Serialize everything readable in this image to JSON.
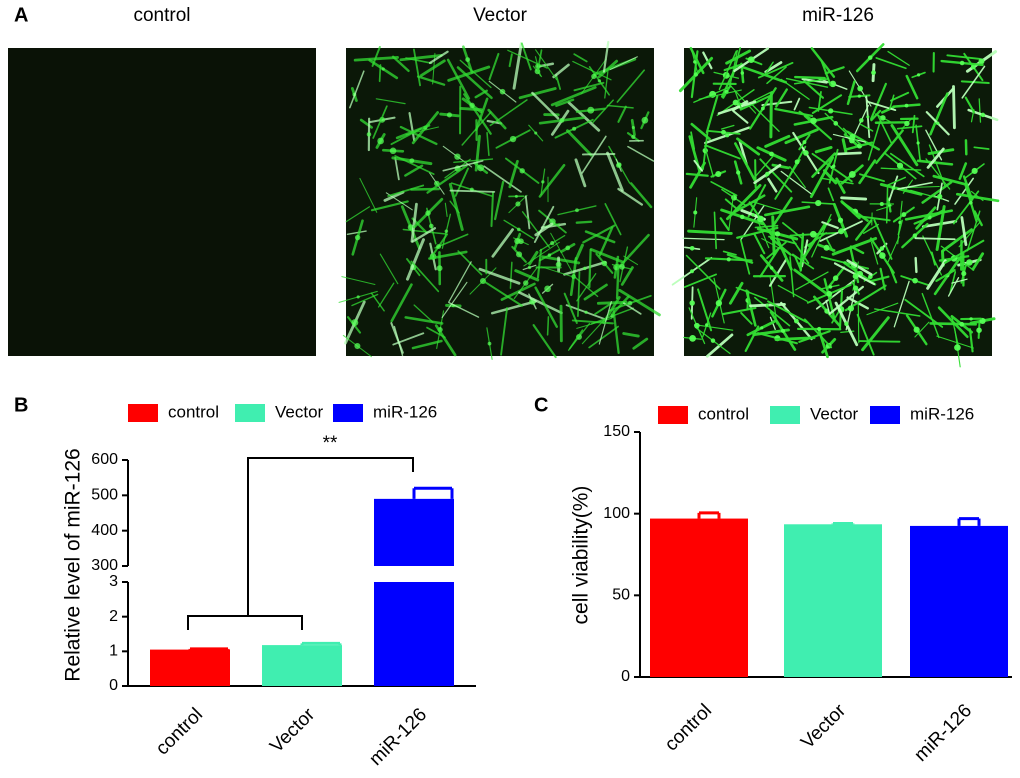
{
  "panel_a": {
    "label": "A",
    "images": [
      {
        "title": "control"
      },
      {
        "title": "Vector"
      },
      {
        "title": "miR-126"
      }
    ]
  },
  "chart_data": [
    {
      "type": "broken-bar",
      "panel_label": "B",
      "y_label": "Relative  level of miR-126",
      "categories": [
        "control",
        "Vector",
        "miR-126"
      ],
      "values": [
        1.05,
        1.18,
        490
      ],
      "errors": [
        0.02,
        0.05,
        30
      ],
      "colors": [
        "#ff0000",
        "#40eeb0",
        "#0000ff"
      ],
      "ylim_lower": [
        0,
        3
      ],
      "yticks_lower": [
        0,
        1,
        2,
        3
      ],
      "ylim_upper": [
        300,
        600
      ],
      "yticks_upper": [
        300,
        400,
        500,
        600
      ],
      "annotation": "**"
    },
    {
      "type": "bar",
      "panel_label": "C",
      "y_label": "cell viability(%)",
      "categories": [
        "control",
        "Vector",
        "miR-126"
      ],
      "values": [
        97,
        93.5,
        92.5
      ],
      "errors": [
        3.5,
        0.5,
        4.5
      ],
      "colors": [
        "#ff0000",
        "#40eeb0",
        "#0000ff"
      ],
      "ylim": [
        0,
        150
      ],
      "yticks": [
        0,
        50,
        100,
        150
      ]
    }
  ]
}
